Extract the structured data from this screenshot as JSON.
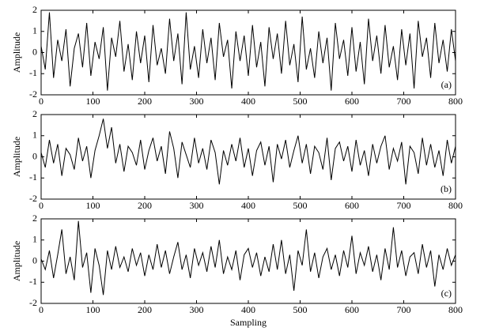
{
  "chart_data": [
    {
      "type": "line",
      "ylabel": "Amplitude",
      "annotation": "(a)",
      "color": "#000000",
      "xlim": [
        0,
        800
      ],
      "ylim": [
        -2,
        2
      ],
      "xticks": [
        0,
        100,
        200,
        300,
        400,
        500,
        600,
        700,
        800
      ],
      "yticks": [
        -2,
        -1,
        0,
        1,
        2
      ],
      "x": [
        0,
        8,
        16,
        24,
        32,
        40,
        48,
        56,
        64,
        72,
        80,
        88,
        96,
        104,
        112,
        120,
        128,
        136,
        144,
        152,
        160,
        168,
        176,
        184,
        192,
        200,
        208,
        216,
        224,
        232,
        240,
        248,
        256,
        264,
        272,
        280,
        288,
        296,
        304,
        312,
        320,
        328,
        336,
        344,
        352,
        360,
        368,
        376,
        384,
        392,
        400,
        408,
        416,
        424,
        432,
        440,
        448,
        456,
        464,
        472,
        480,
        488,
        496,
        504,
        512,
        520,
        528,
        536,
        544,
        552,
        560,
        568,
        576,
        584,
        592,
        600,
        608,
        616,
        624,
        632,
        640,
        648,
        656,
        664,
        672,
        680,
        688,
        696,
        704,
        712,
        720,
        728,
        736,
        744,
        752,
        760,
        768,
        776,
        784,
        792,
        800
      ],
      "values": [
        0.3,
        -0.8,
        1.9,
        -1.2,
        0.6,
        -0.4,
        1.1,
        -1.6,
        0.2,
        0.9,
        -0.7,
        1.4,
        -1.1,
        0.5,
        -0.3,
        1.2,
        -1.8,
        0.7,
        -0.2,
        1.5,
        -0.9,
        0.4,
        -1.3,
        1.0,
        -0.5,
        0.8,
        -1.4,
        1.3,
        -0.6,
        0.2,
        -1.0,
        1.6,
        -0.4,
        0.9,
        -1.5,
        1.9,
        -0.8,
        0.3,
        -1.2,
        1.1,
        -0.5,
        0.7,
        -1.3,
        1.4,
        -0.2,
        0.6,
        -1.7,
        1.0,
        -0.4,
        0.8,
        -1.1,
        1.3,
        -0.7,
        0.5,
        -1.6,
        1.2,
        -0.3,
        0.9,
        -1.0,
        1.5,
        -0.6,
        0.4,
        -1.4,
        1.7,
        -0.8,
        0.2,
        -1.2,
        1.0,
        -0.5,
        0.7,
        -1.8,
        1.4,
        -0.3,
        0.6,
        -1.1,
        1.2,
        -0.9,
        0.5,
        -1.5,
        1.6,
        -0.4,
        0.8,
        -1.0,
        1.3,
        -0.7,
        0.3,
        -1.3,
        1.1,
        -0.6,
        0.9,
        -1.7,
        1.5,
        -0.2,
        0.7,
        -1.2,
        1.4,
        -0.5,
        0.6,
        -0.9,
        1.1,
        -0.4
      ]
    },
    {
      "type": "line",
      "ylabel": "Amplitude",
      "annotation": "(b)",
      "color": "#000000",
      "xlim": [
        0,
        800
      ],
      "ylim": [
        -2,
        2
      ],
      "xticks": [
        0,
        100,
        200,
        300,
        400,
        500,
        600,
        700,
        800
      ],
      "yticks": [
        -2,
        -1,
        0,
        1,
        2
      ],
      "x": [
        0,
        8,
        16,
        24,
        32,
        40,
        48,
        56,
        64,
        72,
        80,
        88,
        96,
        104,
        112,
        120,
        128,
        136,
        144,
        152,
        160,
        168,
        176,
        184,
        192,
        200,
        208,
        216,
        224,
        232,
        240,
        248,
        256,
        264,
        272,
        280,
        288,
        296,
        304,
        312,
        320,
        328,
        336,
        344,
        352,
        360,
        368,
        376,
        384,
        392,
        400,
        408,
        416,
        424,
        432,
        440,
        448,
        456,
        464,
        472,
        480,
        488,
        496,
        504,
        512,
        520,
        528,
        536,
        544,
        552,
        560,
        568,
        576,
        584,
        592,
        600,
        608,
        616,
        624,
        632,
        640,
        648,
        656,
        664,
        672,
        680,
        688,
        696,
        704,
        712,
        720,
        728,
        736,
        744,
        752,
        760,
        768,
        776,
        784,
        792,
        800
      ],
      "values": [
        0.2,
        -0.5,
        0.8,
        -0.3,
        0.6,
        -0.9,
        0.4,
        0.1,
        -0.6,
        0.9,
        -0.2,
        0.5,
        -1.0,
        0.3,
        1.0,
        1.8,
        0.4,
        1.4,
        -0.3,
        0.6,
        -0.7,
        0.5,
        0.2,
        -0.4,
        0.8,
        -0.6,
        0.3,
        0.9,
        -0.2,
        0.5,
        -0.8,
        1.2,
        0.4,
        -1.0,
        0.7,
        0.1,
        -0.5,
        0.9,
        -0.3,
        0.4,
        -0.6,
        0.8,
        0.2,
        -1.3,
        0.3,
        -0.4,
        0.6,
        -0.2,
        0.9,
        -0.5,
        0.4,
        -0.9,
        0.3,
        0.7,
        -0.4,
        0.5,
        -1.2,
        0.6,
        -0.1,
        0.8,
        -0.5,
        0.3,
        1.0,
        -0.3,
        0.6,
        -0.8,
        0.5,
        0.2,
        -0.6,
        0.9,
        -1.1,
        0.4,
        0.7,
        -0.2,
        0.5,
        -0.7,
        0.8,
        -0.4,
        0.3,
        -0.9,
        0.6,
        -0.3,
        0.5,
        1.0,
        -0.6,
        0.4,
        -0.2,
        0.7,
        -1.3,
        0.5,
        0.2,
        -0.8,
        0.9,
        -0.4,
        0.6,
        -0.5,
        0.3,
        -0.9,
        0.8,
        -0.3,
        0.5
      ]
    },
    {
      "type": "line",
      "ylabel": "Amplitude",
      "xlabel": "Sampling",
      "annotation": "(c)",
      "color": "#000000",
      "xlim": [
        0,
        800
      ],
      "ylim": [
        -2,
        2
      ],
      "xticks": [
        0,
        100,
        200,
        300,
        400,
        500,
        600,
        700,
        800
      ],
      "yticks": [
        -2,
        -1,
        0,
        1,
        2
      ],
      "x": [
        0,
        8,
        16,
        24,
        32,
        40,
        48,
        56,
        64,
        72,
        80,
        88,
        96,
        104,
        112,
        120,
        128,
        136,
        144,
        152,
        160,
        168,
        176,
        184,
        192,
        200,
        208,
        216,
        224,
        232,
        240,
        248,
        256,
        264,
        272,
        280,
        288,
        296,
        304,
        312,
        320,
        328,
        336,
        344,
        352,
        360,
        368,
        376,
        384,
        392,
        400,
        408,
        416,
        424,
        432,
        440,
        448,
        456,
        464,
        472,
        480,
        488,
        496,
        504,
        512,
        520,
        528,
        536,
        544,
        552,
        560,
        568,
        576,
        584,
        592,
        600,
        608,
        616,
        624,
        632,
        640,
        648,
        656,
        664,
        672,
        680,
        688,
        696,
        704,
        712,
        720,
        728,
        736,
        744,
        752,
        760,
        768,
        776,
        784,
        792,
        800
      ],
      "values": [
        0.1,
        -0.4,
        0.5,
        -0.8,
        0.3,
        1.5,
        -0.6,
        0.2,
        -0.9,
        1.9,
        -0.3,
        0.4,
        -1.5,
        0.6,
        -0.2,
        -1.6,
        0.5,
        -0.4,
        0.7,
        -0.3,
        0.2,
        -0.5,
        0.6,
        -0.2,
        0.4,
        -0.7,
        0.3,
        -0.4,
        0.8,
        -0.3,
        0.5,
        -0.6,
        0.2,
        0.9,
        -0.4,
        0.3,
        -0.8,
        0.6,
        -0.2,
        0.4,
        -0.5,
        0.7,
        -0.3,
        1.0,
        -0.6,
        0.2,
        -0.4,
        0.5,
        -0.9,
        0.3,
        0.6,
        -0.3,
        0.4,
        -0.7,
        0.2,
        -0.5,
        0.8,
        -0.4,
        1.0,
        -0.6,
        0.3,
        -1.4,
        0.5,
        -0.2,
        1.5,
        -0.5,
        0.4,
        -0.8,
        0.2,
        0.6,
        -0.4,
        0.3,
        -0.7,
        0.5,
        -0.3,
        1.2,
        -0.6,
        0.4,
        -0.2,
        0.7,
        -0.5,
        0.3,
        -0.9,
        0.6,
        -0.4,
        1.6,
        -0.3,
        0.5,
        -0.7,
        0.2,
        0.4,
        -0.6,
        0.8,
        -0.3,
        0.5,
        -1.2,
        0.3,
        -0.4,
        0.6,
        -0.2,
        0.3
      ]
    }
  ]
}
